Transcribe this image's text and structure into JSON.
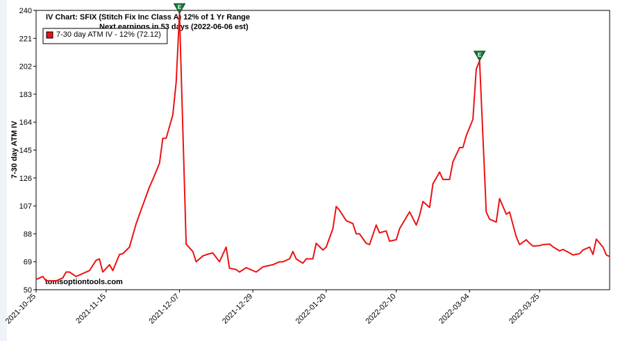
{
  "chart_data": {
    "type": "line",
    "title": "IV Chart: SFIX (Stitch Fix Inc Class A)  12% of 1 Yr Range",
    "subtitle": "Next earnings in 53 days  (2022-06-06 est)",
    "ylabel": "7-30 day ATM IV",
    "watermark": "tomsoptiontools.com",
    "legend_position": "upper left",
    "xlim": [
      "2021-10-25",
      "2022-04-15"
    ],
    "xticks": [
      "2021-10-25",
      "2021-11-15",
      "2021-12-07",
      "2021-12-29",
      "2022-01-20",
      "2022-02-10",
      "2022-03-04",
      "2022-03-25"
    ],
    "ylim": [
      50,
      240
    ],
    "yticks": [
      50,
      69,
      88,
      107,
      126,
      145,
      164,
      183,
      202,
      221,
      240
    ],
    "x": [
      "2021-10-25",
      "2021-10-27",
      "2021-10-28",
      "2021-10-31",
      "2021-11-02",
      "2021-11-03",
      "2021-11-04",
      "2021-11-06",
      "2021-11-08",
      "2021-11-10",
      "2021-11-12",
      "2021-11-13",
      "2021-11-14",
      "2021-11-16",
      "2021-11-17",
      "2021-11-19",
      "2021-11-20",
      "2021-11-22",
      "2021-11-23",
      "2021-11-24",
      "2021-11-26",
      "2021-11-28",
      "2021-11-29",
      "2021-12-01",
      "2021-12-02",
      "2021-12-03",
      "2021-12-05",
      "2021-12-06",
      "2021-12-07",
      "2021-12-09",
      "2021-12-11",
      "2021-12-12",
      "2021-12-14",
      "2021-12-16",
      "2021-12-17",
      "2021-12-19",
      "2021-12-21",
      "2021-12-22",
      "2021-12-24",
      "2021-12-25",
      "2021-12-27",
      "2021-12-30",
      "2022-01-01",
      "2022-01-04",
      "2022-01-06",
      "2022-01-07",
      "2022-01-09",
      "2022-01-10",
      "2022-01-11",
      "2022-01-13",
      "2022-01-14",
      "2022-01-16",
      "2022-01-17",
      "2022-01-19",
      "2022-01-20",
      "2022-01-22",
      "2022-01-23",
      "2022-01-24",
      "2022-01-26",
      "2022-01-28",
      "2022-01-29",
      "2022-01-30",
      "2022-02-01",
      "2022-02-02",
      "2022-02-04",
      "2022-02-05",
      "2022-02-07",
      "2022-02-08",
      "2022-02-10",
      "2022-02-11",
      "2022-02-14",
      "2022-02-16",
      "2022-02-17",
      "2022-02-18",
      "2022-02-20",
      "2022-02-21",
      "2022-02-23",
      "2022-02-24",
      "2022-02-26",
      "2022-02-27",
      "2022-03-01",
      "2022-03-02",
      "2022-03-03",
      "2022-03-05",
      "2022-03-06",
      "2022-03-07",
      "2022-03-09",
      "2022-03-10",
      "2022-03-12",
      "2022-03-13",
      "2022-03-15",
      "2022-03-16",
      "2022-03-18",
      "2022-03-19",
      "2022-03-21",
      "2022-03-22",
      "2022-03-23",
      "2022-03-25",
      "2022-03-26",
      "2022-03-28",
      "2022-03-29",
      "2022-03-31",
      "2022-04-01",
      "2022-04-03",
      "2022-04-04",
      "2022-04-06",
      "2022-04-07",
      "2022-04-09",
      "2022-04-10",
      "2022-04-11",
      "2022-04-13",
      "2022-04-14",
      "2022-04-15"
    ],
    "series": [
      {
        "name": "7-30 day ATM IV - 12% (72.12)",
        "color": "#ee1111",
        "values": [
          57,
          59,
          56,
          56,
          58,
          62,
          62,
          59,
          61,
          63,
          70,
          71,
          62,
          67,
          63,
          74,
          74.5,
          79,
          87,
          95,
          107.5,
          120,
          125,
          136,
          153,
          153,
          169,
          191,
          238,
          81,
          76,
          69,
          73,
          74.5,
          75,
          69,
          79,
          64.6,
          63.7,
          62,
          65,
          62,
          65.5,
          67,
          69,
          69,
          71,
          76,
          71,
          68,
          71,
          71,
          81.6,
          77,
          79,
          91.5,
          106.6,
          104,
          97,
          95,
          88,
          88,
          81.6,
          80.7,
          94,
          88.7,
          90,
          83,
          84,
          91.5,
          103,
          94,
          100.5,
          110,
          106,
          122,
          130,
          125,
          125,
          137,
          146.7,
          146.7,
          154.7,
          166,
          200,
          205.7,
          102.8,
          98,
          96,
          112,
          101.4,
          102.8,
          86,
          80.7,
          84,
          81.6,
          79.7,
          80,
          80.7,
          81,
          79.2,
          76.4,
          77.4,
          75,
          73.6,
          74.5,
          77,
          79,
          74,
          84.4,
          79,
          73.6,
          72.6
        ]
      }
    ],
    "annotations": [
      {
        "x": "2021-12-07",
        "label": "E"
      },
      {
        "x": "2022-03-07",
        "label": "E"
      }
    ]
  }
}
